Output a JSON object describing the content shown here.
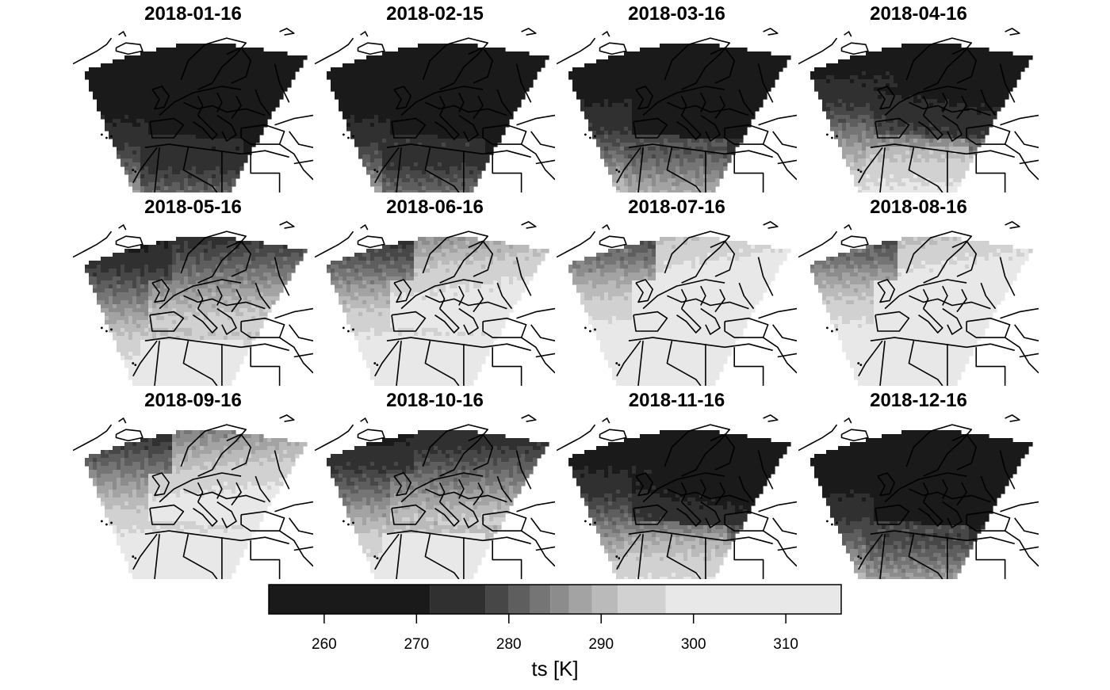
{
  "panels": [
    {
      "date": "2018-01-16",
      "month": 1
    },
    {
      "date": "2018-02-15",
      "month": 2
    },
    {
      "date": "2018-03-16",
      "month": 3
    },
    {
      "date": "2018-04-16",
      "month": 4
    },
    {
      "date": "2018-05-16",
      "month": 5
    },
    {
      "date": "2018-06-16",
      "month": 6
    },
    {
      "date": "2018-07-16",
      "month": 7
    },
    {
      "date": "2018-08-16",
      "month": 8
    },
    {
      "date": "2018-09-16",
      "month": 9
    },
    {
      "date": "2018-10-16",
      "month": 10
    },
    {
      "date": "2018-11-16",
      "month": 11
    },
    {
      "date": "2018-12-16",
      "month": 12
    }
  ],
  "colorbar": {
    "title": "ts [K]",
    "range": [
      254,
      316
    ],
    "ticks": [
      "260",
      "270",
      "280",
      "290",
      "300",
      "310"
    ],
    "tick_values": [
      260,
      270,
      280,
      290,
      300,
      310
    ],
    "breaks": [
      254,
      271.5,
      277.5,
      280,
      282.3,
      284.5,
      286.5,
      289,
      291.8,
      297,
      316
    ],
    "colors": [
      "#1a1a1a",
      "#303030",
      "#474747",
      "#5e5e5e",
      "#757575",
      "#8c8c8c",
      "#a3a3a3",
      "#bababa",
      "#d1d1d1",
      "#e8e8e8"
    ]
  },
  "chart_data": {
    "type": "heatmap",
    "variable": "ts",
    "unit": "K",
    "value_range": [
      254,
      316
    ],
    "facets": [
      "2018-01-16",
      "2018-02-15",
      "2018-03-16",
      "2018-04-16",
      "2018-05-16",
      "2018-06-16",
      "2018-07-16",
      "2018-08-16",
      "2018-09-16",
      "2018-10-16",
      "2018-11-16",
      "2018-12-16"
    ]
  }
}
